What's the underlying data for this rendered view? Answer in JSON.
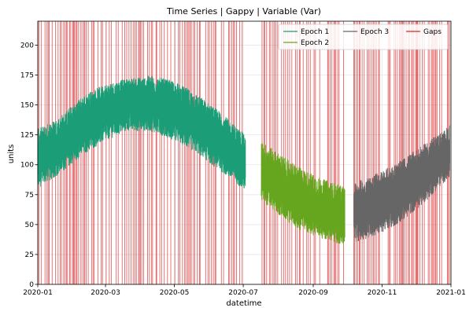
{
  "chart_data": {
    "type": "line",
    "title": "Time Series | Gappy | Variable (Var)",
    "xlabel": "datetime",
    "ylabel": "units",
    "xlim": [
      "2020-01-01",
      "2021-01-01"
    ],
    "ylim": [
      0,
      220
    ],
    "x_ticks": [
      "2020-01",
      "2020-03",
      "2020-05",
      "2020-07",
      "2020-09",
      "2020-11",
      "2021-01"
    ],
    "y_ticks": [
      0,
      25,
      50,
      75,
      100,
      125,
      150,
      175,
      200
    ],
    "grid": true,
    "legend_position": "top-right",
    "series": [
      {
        "name": "Epoch 1",
        "color": "#1b9e77",
        "x": [
          "2020-01-01",
          "2020-01-20",
          "2020-02-10",
          "2020-03-01",
          "2020-03-20",
          "2020-04-10",
          "2020-05-01",
          "2020-05-20",
          "2020-06-10",
          "2020-07-03"
        ],
        "low": [
          80,
          92,
          108,
          120,
          128,
          128,
          120,
          110,
          95,
          78
        ],
        "high": [
          130,
          140,
          158,
          168,
          172,
          175,
          170,
          160,
          145,
          125
        ]
      },
      {
        "name": "Epoch 2",
        "color": "#66a61e",
        "x": [
          "2020-07-17",
          "2020-08-01",
          "2020-08-20",
          "2020-09-10",
          "2020-09-29"
        ],
        "low": [
          70,
          58,
          45,
          38,
          32
        ],
        "high": [
          120,
          110,
          98,
          88,
          82
        ]
      },
      {
        "name": "Epoch 3",
        "color": "#666666",
        "x": [
          "2020-10-07",
          "2020-10-25",
          "2020-11-15",
          "2020-12-05",
          "2020-12-31"
        ],
        "low": [
          35,
          40,
          50,
          65,
          90
        ],
        "high": [
          85,
          92,
          102,
          115,
          133
        ]
      }
    ],
    "gaps": {
      "name": "Gaps",
      "color": "#d62728"
    }
  }
}
